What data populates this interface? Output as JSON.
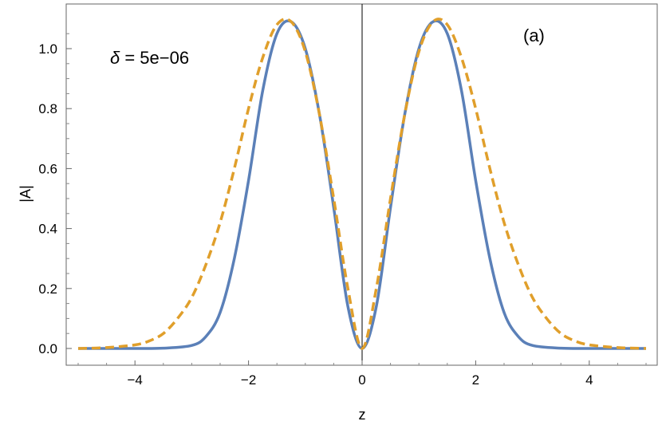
{
  "chart_data": {
    "type": "line",
    "xlabel": "z",
    "ylabel": "|A|",
    "xlim": [
      -5,
      5
    ],
    "ylim": [
      0,
      1.1
    ],
    "x_ticks": [
      -4,
      -2,
      0,
      2,
      4
    ],
    "x_tick_labels": [
      "−4",
      "−2",
      "0",
      "2",
      "4"
    ],
    "y_ticks": [
      0.0,
      0.2,
      0.4,
      0.6,
      0.8,
      1.0
    ],
    "y_tick_labels": [
      "0.0",
      "0.2",
      "0.4",
      "0.6",
      "0.8",
      "1.0"
    ],
    "grid": false,
    "annotations": {
      "delta_symbol": "δ",
      "delta_text": " = 5e−06",
      "panel": "(a)"
    },
    "series": [
      {
        "style": "solid",
        "color": "#5b80b8",
        "x": [
          -5,
          -4.5,
          -4,
          -3.5,
          -3,
          -2.75,
          -2.5,
          -2.25,
          -2,
          -1.75,
          -1.5,
          -1.25,
          -1,
          -0.75,
          -0.5,
          -0.25,
          0,
          0.25,
          0.5,
          0.75,
          1,
          1.25,
          1.5,
          1.75,
          2,
          2.25,
          2.5,
          2.75,
          3,
          3.5,
          4,
          4.5,
          5
        ],
        "y": [
          0.0,
          0.0,
          0.0,
          0.001,
          0.01,
          0.04,
          0.12,
          0.3,
          0.56,
          0.86,
          1.05,
          1.09,
          1.0,
          0.78,
          0.47,
          0.14,
          0.0,
          0.14,
          0.47,
          0.78,
          1.0,
          1.09,
          1.05,
          0.86,
          0.56,
          0.3,
          0.12,
          0.04,
          0.01,
          0.001,
          0.0,
          0.0,
          0.0
        ]
      },
      {
        "style": "dashed",
        "color": "#e09f2b",
        "x": [
          -5,
          -4.5,
          -4,
          -3.75,
          -3.5,
          -3.25,
          -3,
          -2.75,
          -2.5,
          -2.25,
          -2,
          -1.75,
          -1.5,
          -1.25,
          -1,
          -0.75,
          -0.5,
          -0.25,
          0,
          0.25,
          0.5,
          0.75,
          1,
          1.25,
          1.5,
          1.75,
          2,
          2.25,
          2.5,
          2.75,
          3,
          3.25,
          3.5,
          3.75,
          4,
          4.5,
          5
        ],
        "y": [
          0.0,
          0.003,
          0.012,
          0.025,
          0.05,
          0.1,
          0.17,
          0.28,
          0.42,
          0.6,
          0.8,
          0.97,
          1.08,
          1.09,
          0.99,
          0.78,
          0.5,
          0.2,
          0.0,
          0.2,
          0.5,
          0.78,
          0.99,
          1.09,
          1.08,
          0.97,
          0.8,
          0.6,
          0.42,
          0.28,
          0.17,
          0.1,
          0.05,
          0.025,
          0.012,
          0.003,
          0.0
        ]
      }
    ]
  }
}
